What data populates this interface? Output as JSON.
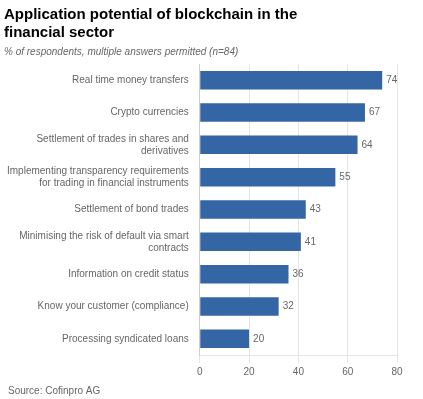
{
  "chart_data": {
    "type": "bar",
    "orientation": "horizontal",
    "title": "Application potential of blockchain in the\nfinancial sector",
    "subtitle": "% of respondents, multiple answers permitted (n=84)",
    "source": "Source: Cofinpro AG",
    "categories": [
      "Real time money transfers",
      "Crypto currencies",
      "Settlement of trades in shares and\nderivatives",
      "Implementing transparency requirements\nfor trading in financial instruments",
      "Settlement of bond trades",
      "Minimising the risk of default via smart\ncontracts",
      "Information on credit status",
      "Know your customer (compliance)",
      "Processing syndicated loans"
    ],
    "values": [
      74,
      67,
      64,
      55,
      43,
      41,
      36,
      32,
      20
    ],
    "color": "#3465a4",
    "xlim": [
      0,
      80
    ],
    "xticks": [
      0,
      20,
      40,
      60,
      80
    ],
    "grid": true,
    "data_labels": true
  }
}
